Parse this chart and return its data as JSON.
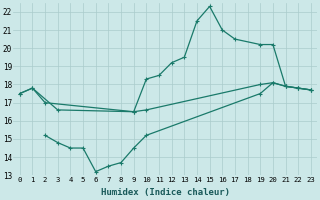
{
  "xlabel": "Humidex (Indice chaleur)",
  "background_color": "#cce8e8",
  "grid_color": "#aacccc",
  "line_color": "#1a7a6a",
  "xlim": [
    -0.5,
    23.5
  ],
  "ylim": [
    13,
    22.5
  ],
  "xticks": [
    0,
    1,
    2,
    3,
    4,
    5,
    6,
    7,
    8,
    9,
    10,
    11,
    12,
    13,
    14,
    15,
    16,
    17,
    18,
    19,
    20,
    21,
    22,
    23
  ],
  "yticks": [
    13,
    14,
    15,
    16,
    17,
    18,
    19,
    20,
    21,
    22
  ],
  "line1_x": [
    0,
    1,
    3,
    9,
    10,
    11,
    12,
    13,
    14,
    15,
    16,
    17,
    19,
    20,
    21,
    22,
    23
  ],
  "line1_y": [
    17.5,
    17.8,
    16.6,
    16.5,
    18.3,
    18.5,
    19.2,
    19.5,
    21.5,
    22.3,
    21.0,
    20.5,
    20.2,
    20.2,
    17.9,
    17.8,
    17.7
  ],
  "line2_x": [
    0,
    1,
    2,
    9,
    10,
    19,
    20,
    21,
    22,
    23
  ],
  "line2_y": [
    17.5,
    17.8,
    17.0,
    16.5,
    16.6,
    18.0,
    18.1,
    17.9,
    17.8,
    17.7
  ],
  "line3_x": [
    2,
    3,
    4,
    5,
    6,
    7,
    8,
    9,
    10,
    19,
    20,
    21,
    22,
    23
  ],
  "line3_y": [
    15.2,
    14.8,
    14.5,
    14.5,
    13.2,
    13.5,
    13.7,
    14.5,
    15.2,
    17.5,
    18.1,
    17.9,
    17.8,
    17.7
  ]
}
